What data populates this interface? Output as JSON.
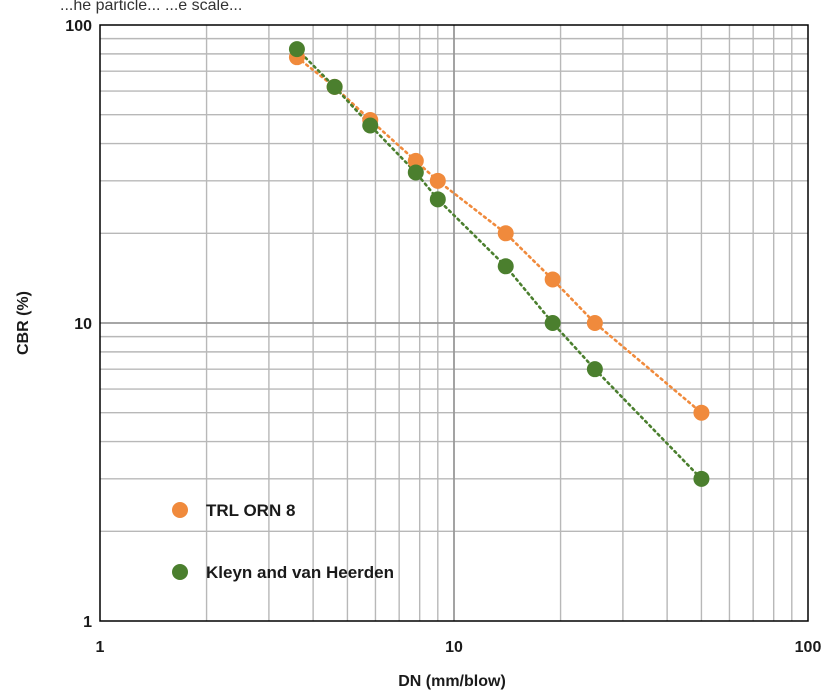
{
  "top_text_fragment": "...he particle... ...e scale...",
  "chart_data": {
    "type": "scatter",
    "xscale": "log",
    "yscale": "log",
    "xlim": [
      1,
      100
    ],
    "ylim": [
      1,
      100
    ],
    "xlabel": "DN (mm/blow)",
    "ylabel": "CBR (%)",
    "xticks": [
      1,
      10,
      100
    ],
    "xtick_labels": [
      "1",
      "10",
      "100"
    ],
    "yticks": [
      1,
      10,
      100
    ],
    "ytick_labels": [
      "1",
      "10",
      "100"
    ],
    "grid": true,
    "legend_position": "bottom-left",
    "series": [
      {
        "name": "TRL ORN 8",
        "color": "#f08a3c",
        "line_style": "dotted",
        "points": [
          [
            3.6,
            78
          ],
          [
            4.6,
            62
          ],
          [
            5.8,
            48
          ],
          [
            7.8,
            35
          ],
          [
            9,
            30
          ],
          [
            14,
            20
          ],
          [
            19,
            14
          ],
          [
            25,
            10
          ],
          [
            50,
            5
          ]
        ]
      },
      {
        "name": "Kleyn and van Heerden",
        "color": "#4b7f2e",
        "line_style": "dotted",
        "points": [
          [
            3.6,
            83
          ],
          [
            4.6,
            62
          ],
          [
            5.8,
            46
          ],
          [
            7.8,
            32
          ],
          [
            9,
            26
          ],
          [
            14,
            15.5
          ],
          [
            19,
            10
          ],
          [
            25,
            7
          ],
          [
            50,
            3
          ]
        ]
      }
    ]
  }
}
